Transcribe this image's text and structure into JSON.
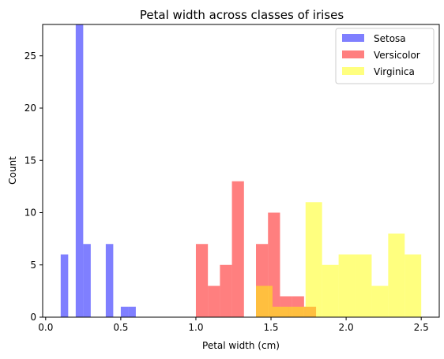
{
  "chart_data": {
    "type": "histogram",
    "title": "Petal width across classes of irises",
    "xlabel": "Petal width (cm)",
    "ylabel": "Count",
    "xlim": [
      -0.02,
      2.62
    ],
    "ylim": [
      0,
      28
    ],
    "xticks": [
      "0.0",
      "0.5",
      "1.0",
      "1.5",
      "2.0",
      "2.5"
    ],
    "yticks": [
      "0",
      "5",
      "10",
      "15",
      "20",
      "25"
    ],
    "grid": false,
    "legend_position": "top-right",
    "series": [
      {
        "name": "Setosa",
        "color": "#0000ff",
        "opacity": 0.5,
        "bins": [
          {
            "x0": 0.1,
            "x1": 0.15,
            "count": 6
          },
          {
            "x0": 0.15,
            "x1": 0.2,
            "count": 0
          },
          {
            "x0": 0.2,
            "x1": 0.25,
            "count": 28
          },
          {
            "x0": 0.25,
            "x1": 0.3,
            "count": 7
          },
          {
            "x0": 0.3,
            "x1": 0.35,
            "count": 0
          },
          {
            "x0": 0.35,
            "x1": 0.4,
            "count": 0
          },
          {
            "x0": 0.4,
            "x1": 0.45,
            "count": 7
          },
          {
            "x0": 0.45,
            "x1": 0.5,
            "count": 0
          },
          {
            "x0": 0.5,
            "x1": 0.55,
            "count": 1
          },
          {
            "x0": 0.55,
            "x1": 0.6,
            "count": 1
          }
        ]
      },
      {
        "name": "Versicolor",
        "color": "#ff0000",
        "opacity": 0.5,
        "bins": [
          {
            "x0": 1.0,
            "x1": 1.08,
            "count": 7
          },
          {
            "x0": 1.08,
            "x1": 1.16,
            "count": 3
          },
          {
            "x0": 1.16,
            "x1": 1.24,
            "count": 5
          },
          {
            "x0": 1.24,
            "x1": 1.32,
            "count": 13
          },
          {
            "x0": 1.32,
            "x1": 1.4,
            "count": 0
          },
          {
            "x0": 1.4,
            "x1": 1.48,
            "count": 7
          },
          {
            "x0": 1.48,
            "x1": 1.56,
            "count": 10
          },
          {
            "x0": 1.56,
            "x1": 1.64,
            "count": 2
          },
          {
            "x0": 1.64,
            "x1": 1.72,
            "count": 2
          },
          {
            "x0": 1.72,
            "x1": 1.8,
            "count": 1
          }
        ]
      },
      {
        "name": "Virginica",
        "color": "#ffff00",
        "opacity": 0.5,
        "bins": [
          {
            "x0": 1.4,
            "x1": 1.51,
            "count": 3
          },
          {
            "x0": 1.51,
            "x1": 1.62,
            "count": 1
          },
          {
            "x0": 1.62,
            "x1": 1.73,
            "count": 1
          },
          {
            "x0": 1.73,
            "x1": 1.84,
            "count": 11
          },
          {
            "x0": 1.84,
            "x1": 1.95,
            "count": 5
          },
          {
            "x0": 1.95,
            "x1": 2.06,
            "count": 6
          },
          {
            "x0": 2.06,
            "x1": 2.17,
            "count": 6
          },
          {
            "x0": 2.17,
            "x1": 2.28,
            "count": 3
          },
          {
            "x0": 2.28,
            "x1": 2.39,
            "count": 8
          },
          {
            "x0": 2.39,
            "x1": 2.5,
            "count": 6
          }
        ]
      }
    ]
  }
}
